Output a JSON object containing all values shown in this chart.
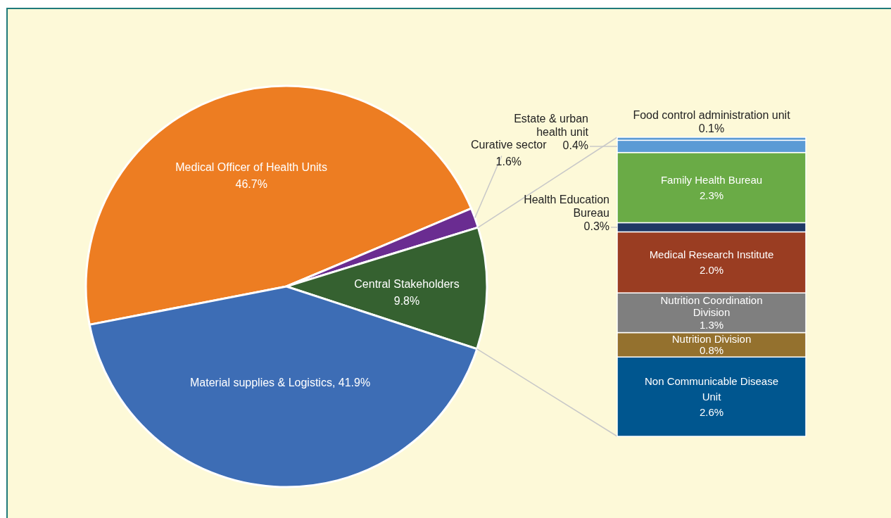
{
  "chart_data": [
    {
      "type": "pie",
      "categories": [
        "Medical Officer of Health Units",
        "Curative sector",
        "Central Stakeholders",
        "Material supplies & Logistics"
      ],
      "values": [
        46.7,
        1.6,
        9.8,
        41.9
      ],
      "colors": [
        "#ed7d22",
        "#6a2c91",
        "#356130",
        "#3d6db5"
      ],
      "value_labels": [
        "46.7%",
        "1.6%",
        "9.8%",
        "41.9%"
      ]
    },
    {
      "type": "bar",
      "stacked": true,
      "categories": [
        null
      ],
      "series": [
        {
          "name": "Non Communicable Disease Unit",
          "color": "#00568f",
          "values": [
            2.6
          ],
          "value_labels": [
            "2.6%"
          ]
        },
        {
          "name": "Nutrition Division",
          "color": "#94712e",
          "values": [
            0.8
          ],
          "value_labels": [
            "0.8%"
          ]
        },
        {
          "name": "Nutrition Coordination Division",
          "color": "#7f7f7f",
          "values": [
            1.3
          ],
          "value_labels": [
            "1.3%"
          ]
        },
        {
          "name": "Medical Research Institute",
          "color": "#9a3d22",
          "values": [
            2.0
          ],
          "value_labels": [
            "2.0%"
          ]
        },
        {
          "name": "Health Education Bureau",
          "color": "#1f3864",
          "values": [
            0.3
          ],
          "value_labels": [
            "0.3%"
          ]
        },
        {
          "name": "Family Health Bureau",
          "color": "#6aab46",
          "values": [
            2.3
          ],
          "value_labels": [
            "2.3%"
          ]
        },
        {
          "name": "Estate & urban health unit",
          "color": "#5b9bd5",
          "values": [
            0.4
          ],
          "value_labels": [
            "0.4%"
          ]
        },
        {
          "name": "Food control administration unit",
          "color": "#5b9bd5",
          "values": [
            0.1
          ],
          "value_labels": [
            "0.1%"
          ]
        }
      ]
    }
  ]
}
